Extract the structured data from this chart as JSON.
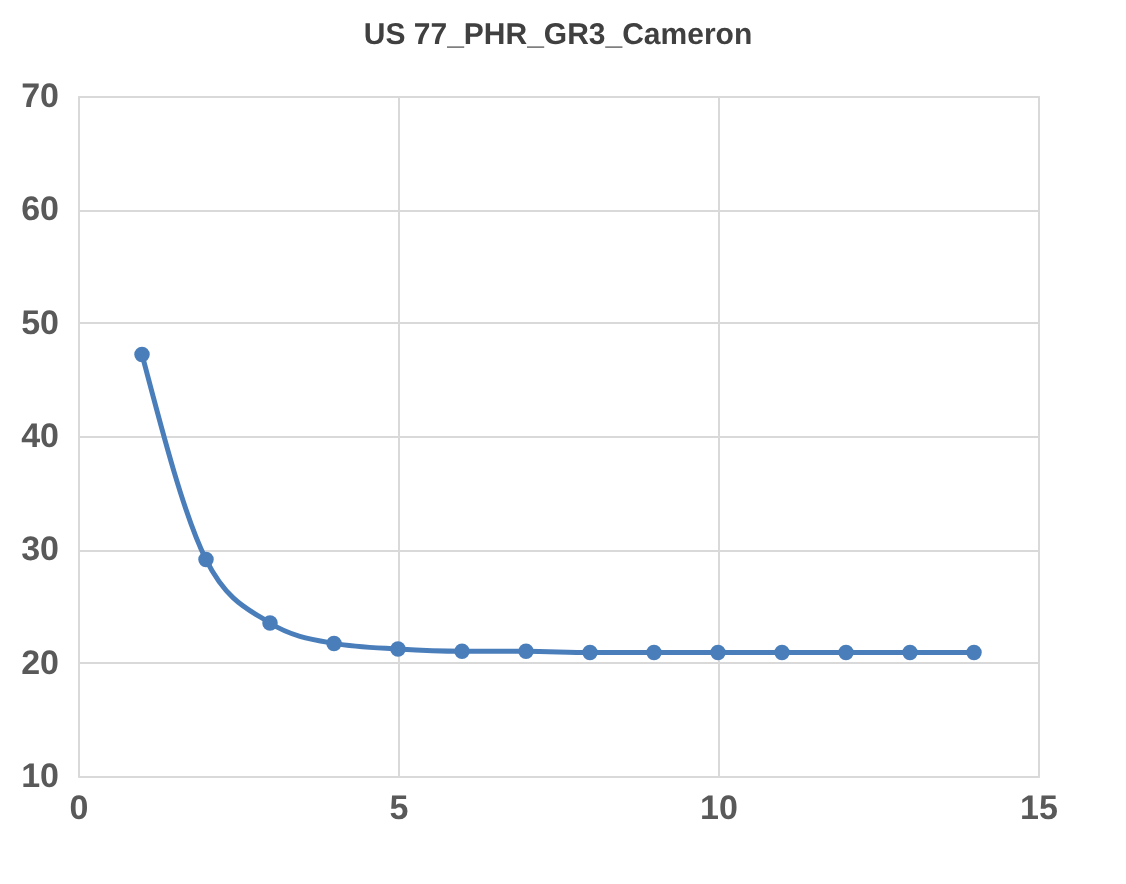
{
  "chart_data": {
    "type": "line",
    "title": "US 77_PHR_GR3_Cameron",
    "x": [
      1,
      2,
      3,
      4,
      5,
      6,
      7,
      8,
      9,
      10,
      11,
      12,
      13,
      14
    ],
    "series": [
      {
        "color": "#4a7ebb",
        "values": [
          47.2,
          29.1,
          23.5,
          21.7,
          21.2,
          21.0,
          21.0,
          20.9,
          20.9,
          20.9,
          20.9,
          20.9,
          20.9,
          20.9
        ]
      }
    ],
    "xlim": [
      0,
      15
    ],
    "xticks": [
      0,
      5,
      10,
      15
    ],
    "ylim": [
      10,
      70
    ],
    "yticks": [
      10,
      20,
      30,
      40,
      50,
      60,
      70
    ],
    "grid": true,
    "marker": "circle",
    "line_style": "solid"
  }
}
